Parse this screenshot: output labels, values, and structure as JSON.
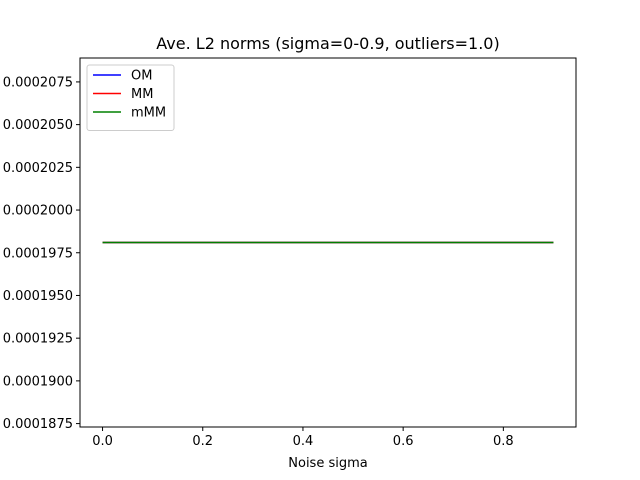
{
  "chart_data": {
    "type": "line",
    "title": "Ave. L2 norms (sigma=0-0.9, outliers=1.0)",
    "xlabel": "Noise sigma",
    "ylabel": "",
    "xlim": [
      -0.045,
      0.945
    ],
    "ylim": [
      0.0001873,
      0.0002089
    ],
    "xticks": [
      0.0,
      0.2,
      0.4,
      0.6,
      0.8
    ],
    "xtick_labels": [
      "0.0",
      "0.2",
      "0.4",
      "0.6",
      "0.8"
    ],
    "yticks": [
      0.0001875,
      0.00019,
      0.0001925,
      0.000195,
      0.0001975,
      0.0002,
      0.0002025,
      0.000205,
      0.0002075
    ],
    "ytick_labels": [
      "0.0001875",
      "0.0001900",
      "0.0001925",
      "0.0001950",
      "0.0001975",
      "0.0002000",
      "0.0002025",
      "0.0002050",
      "0.0002075"
    ],
    "grid": false,
    "legend_position": "top-left",
    "x": [
      0.0,
      0.1,
      0.2,
      0.3,
      0.4,
      0.5,
      0.6,
      0.7,
      0.8,
      0.9
    ],
    "series": [
      {
        "name": "OM",
        "color": "#0000ff",
        "values": [
          0.0001981,
          0.0001981,
          0.0001981,
          0.0001981,
          0.0001981,
          0.0001981,
          0.0001981,
          0.0001981,
          0.0001981,
          0.0001981
        ]
      },
      {
        "name": "MM",
        "color": "#ff0000",
        "values": [
          0.0001981,
          0.0001981,
          0.0001981,
          0.0001981,
          0.0001981,
          0.0001981,
          0.0001981,
          0.0001981,
          0.0001981,
          0.0001981
        ]
      },
      {
        "name": "mMM",
        "color": "#008000",
        "values": [
          0.0001981,
          0.0001981,
          0.0001981,
          0.0001981,
          0.0001981,
          0.0001981,
          0.0001981,
          0.0001981,
          0.0001981,
          0.0001981
        ]
      }
    ]
  }
}
